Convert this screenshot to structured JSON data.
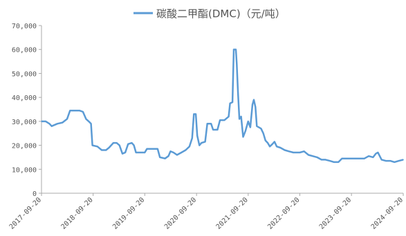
{
  "chart_data": {
    "type": "line",
    "title": "",
    "xlabel": "",
    "ylabel": "",
    "legend_position": "top-center",
    "grid": false,
    "ylim": [
      0,
      70000
    ],
    "y_ticks": [
      "0",
      "10,000",
      "20,000",
      "30,000",
      "40,000",
      "50,000",
      "60,000",
      "70,000"
    ],
    "x_ticks": [
      "2017-09-20",
      "2018-09-20",
      "2019-09-20",
      "2020-09-20",
      "2021-09-20",
      "2022-09-20",
      "2023-09-20",
      "2024-09-20"
    ],
    "colors": {
      "line": "#5b9bd5",
      "axis": "#aaaaaa",
      "text": "#555555"
    },
    "series": [
      {
        "name": "碳酸二甲酯(DMC)（元/吨）",
        "points": [
          [
            "2017-09-20",
            30000
          ],
          [
            "2017-10-20",
            30000
          ],
          [
            "2017-11-15",
            29000
          ],
          [
            "2017-12-01",
            28000
          ],
          [
            "2018-01-10",
            29000
          ],
          [
            "2018-02-15",
            29500
          ],
          [
            "2018-03-20",
            31000
          ],
          [
            "2018-04-10",
            34500
          ],
          [
            "2018-05-15",
            34500
          ],
          [
            "2018-06-15",
            34500
          ],
          [
            "2018-07-10",
            34000
          ],
          [
            "2018-08-01",
            31000
          ],
          [
            "2018-08-20",
            30000
          ],
          [
            "2018-09-05",
            29000
          ],
          [
            "2018-09-15",
            20000
          ],
          [
            "2018-10-20",
            19500
          ],
          [
            "2018-11-20",
            18000
          ],
          [
            "2018-12-20",
            18000
          ],
          [
            "2019-01-10",
            19000
          ],
          [
            "2019-02-10",
            21000
          ],
          [
            "2019-03-05",
            21000
          ],
          [
            "2019-03-25",
            20000
          ],
          [
            "2019-04-15",
            16500
          ],
          [
            "2019-05-05",
            17000
          ],
          [
            "2019-05-25",
            20500
          ],
          [
            "2019-06-20",
            21000
          ],
          [
            "2019-07-05",
            20000
          ],
          [
            "2019-07-20",
            17000
          ],
          [
            "2019-08-20",
            17000
          ],
          [
            "2019-09-20",
            17000
          ],
          [
            "2019-10-05",
            18500
          ],
          [
            "2019-11-20",
            18500
          ],
          [
            "2019-12-20",
            18500
          ],
          [
            "2020-01-05",
            15000
          ],
          [
            "2020-02-10",
            14500
          ],
          [
            "2020-03-05",
            15500
          ],
          [
            "2020-03-20",
            17500
          ],
          [
            "2020-04-10",
            17000
          ],
          [
            "2020-05-05",
            16000
          ],
          [
            "2020-06-05",
            17000
          ],
          [
            "2020-07-05",
            18000
          ],
          [
            "2020-08-01",
            19500
          ],
          [
            "2020-08-20",
            23000
          ],
          [
            "2020-09-01",
            33000
          ],
          [
            "2020-09-15",
            33000
          ],
          [
            "2020-09-25",
            24000
          ],
          [
            "2020-10-10",
            20000
          ],
          [
            "2020-10-25",
            21000
          ],
          [
            "2020-11-20",
            21500
          ],
          [
            "2020-12-05",
            29000
          ],
          [
            "2021-01-01",
            29000
          ],
          [
            "2021-01-15",
            26500
          ],
          [
            "2021-02-15",
            26500
          ],
          [
            "2021-03-05",
            30500
          ],
          [
            "2021-04-05",
            30500
          ],
          [
            "2021-05-05",
            32000
          ],
          [
            "2021-05-15",
            37500
          ],
          [
            "2021-06-01",
            38000
          ],
          [
            "2021-06-10",
            60000
          ],
          [
            "2021-06-25",
            60000
          ],
          [
            "2021-07-01",
            54000
          ],
          [
            "2021-07-10",
            42000
          ],
          [
            "2021-07-20",
            31000
          ],
          [
            "2021-08-01",
            32000
          ],
          [
            "2021-08-15",
            23500
          ],
          [
            "2021-09-01",
            26000
          ],
          [
            "2021-09-20",
            30000
          ],
          [
            "2021-10-05",
            27500
          ],
          [
            "2021-10-20",
            37000
          ],
          [
            "2021-10-30",
            39000
          ],
          [
            "2021-11-10",
            36000
          ],
          [
            "2021-11-20",
            28000
          ],
          [
            "2021-12-20",
            27000
          ],
          [
            "2022-01-05",
            25000
          ],
          [
            "2022-01-20",
            22000
          ],
          [
            "2022-02-05",
            21000
          ],
          [
            "2022-02-20",
            19500
          ],
          [
            "2022-03-10",
            20500
          ],
          [
            "2022-03-25",
            21500
          ],
          [
            "2022-04-10",
            19500
          ],
          [
            "2022-05-05",
            19000
          ],
          [
            "2022-06-05",
            18000
          ],
          [
            "2022-07-05",
            17500
          ],
          [
            "2022-08-05",
            17000
          ],
          [
            "2022-09-20",
            17000
          ],
          [
            "2022-10-20",
            17500
          ],
          [
            "2022-11-20",
            16000
          ],
          [
            "2022-12-20",
            15500
          ],
          [
            "2023-01-20",
            15000
          ],
          [
            "2023-02-20",
            14000
          ],
          [
            "2023-03-20",
            14000
          ],
          [
            "2023-04-20",
            13500
          ],
          [
            "2023-05-20",
            13000
          ],
          [
            "2023-06-20",
            13000
          ],
          [
            "2023-07-15",
            14500
          ],
          [
            "2023-08-10",
            14500
          ],
          [
            "2023-09-20",
            14500
          ],
          [
            "2023-10-20",
            14500
          ],
          [
            "2023-11-20",
            14500
          ],
          [
            "2023-12-20",
            14500
          ],
          [
            "2024-01-20",
            15500
          ],
          [
            "2024-02-20",
            15000
          ],
          [
            "2024-03-10",
            16500
          ],
          [
            "2024-03-25",
            17000
          ],
          [
            "2024-04-20",
            14000
          ],
          [
            "2024-05-20",
            13500
          ],
          [
            "2024-06-20",
            13500
          ],
          [
            "2024-07-20",
            13000
          ],
          [
            "2024-08-20",
            13500
          ],
          [
            "2024-09-20",
            14000
          ]
        ]
      }
    ]
  }
}
